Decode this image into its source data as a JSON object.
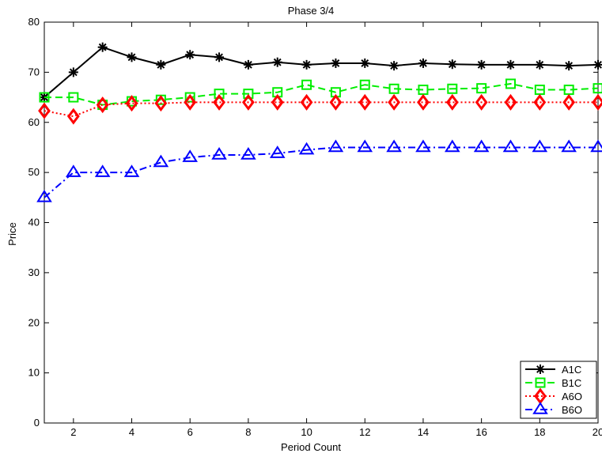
{
  "chart_data": {
    "type": "line",
    "title": "Phase 3/4",
    "xlabel": "Period Count",
    "ylabel": "Price",
    "xlim": [
      1,
      20
    ],
    "ylim": [
      0,
      80
    ],
    "xticks": [
      2,
      4,
      6,
      8,
      10,
      12,
      14,
      16,
      18,
      20
    ],
    "yticks": [
      0,
      10,
      20,
      30,
      40,
      50,
      60,
      70,
      80
    ],
    "grid": false,
    "legend_position": "bottom-right",
    "x": [
      1,
      2,
      3,
      4,
      5,
      6,
      7,
      8,
      9,
      10,
      11,
      12,
      13,
      14,
      15,
      16,
      17,
      18,
      19,
      20
    ],
    "series": [
      {
        "name": "A1C",
        "color": "#000000",
        "line": "solid",
        "marker": "asterisk",
        "values": [
          65,
          70,
          75,
          73,
          71.5,
          73.5,
          73,
          71.5,
          72,
          71.5,
          71.8,
          71.8,
          71.3,
          71.8,
          71.6,
          71.5,
          71.5,
          71.5,
          71.3,
          71.5
        ]
      },
      {
        "name": "B1C",
        "color": "#00ee00",
        "line": "dashed",
        "marker": "square",
        "values": [
          65,
          65,
          63.5,
          64.2,
          64.5,
          65,
          65.7,
          65.7,
          66,
          67.5,
          66,
          67.5,
          66.7,
          66.5,
          66.7,
          66.8,
          67.7,
          66.5,
          66.5,
          66.8
        ]
      },
      {
        "name": "A6O",
        "color": "#ff0000",
        "line": "dotted",
        "marker": "diamond",
        "values": [
          62.3,
          61.2,
          63.5,
          63.8,
          63.8,
          64,
          64,
          64,
          64,
          64,
          64,
          64,
          64,
          64,
          64,
          64,
          64,
          64,
          64,
          64
        ]
      },
      {
        "name": "B6O",
        "color": "#0000ff",
        "line": "dashdot",
        "marker": "triangle",
        "values": [
          45,
          50,
          50,
          50,
          52,
          53,
          53.5,
          53.5,
          53.8,
          54.5,
          55,
          55,
          55,
          55,
          55,
          55,
          55,
          55,
          55,
          55
        ]
      }
    ]
  }
}
